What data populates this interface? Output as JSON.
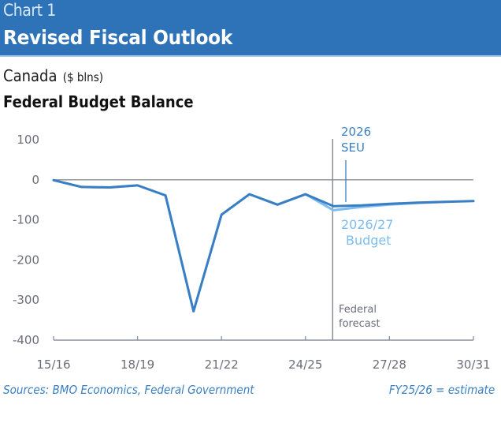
{
  "header": {
    "chart_number": "Chart 1",
    "title": "Revised Fiscal Outlook"
  },
  "subtitle": {
    "region": "Canada",
    "unit": "($ blns)"
  },
  "series_title": "Federal Budget Balance",
  "footer": {
    "sources": "Sources: BMO Economics, Federal Government",
    "note": "FY25/26 = estimate"
  },
  "colors": {
    "header_bg": "#2E73B8",
    "seu_line": "#3A7FC3",
    "budget_line": "#7CBCF0",
    "axis": "#6B6E7A"
  },
  "chart_data": {
    "type": "line",
    "title": "Federal Budget Balance",
    "xlabel": "",
    "ylabel": "$ blns",
    "x": [
      "15/16",
      "16/17",
      "17/18",
      "18/19",
      "19/20",
      "20/21",
      "21/22",
      "22/23",
      "23/24",
      "24/25",
      "25/26",
      "26/27",
      "27/28",
      "28/29",
      "29/30",
      "30/31"
    ],
    "x_tick_labels": [
      "15/16",
      "18/19",
      "21/22",
      "24/25",
      "27/28",
      "30/31"
    ],
    "y_tick_labels": [
      "100",
      "0",
      "-100",
      "-200",
      "-300",
      "-400"
    ],
    "ylim": [
      -400,
      100
    ],
    "series": [
      {
        "name": "2026 SEU",
        "values": [
          -1,
          -18,
          -19,
          -14,
          -39,
          -328,
          -87,
          -36,
          -62,
          -36,
          -66,
          -64,
          -60,
          -57,
          -55,
          -53
        ]
      },
      {
        "name": "2026/27 Budget",
        "values": [
          -1,
          -18,
          -19,
          -14,
          -39,
          -328,
          -87,
          -36,
          -62,
          -36,
          -76,
          -68,
          -62,
          -58,
          -55,
          null
        ]
      }
    ],
    "zero_line": true,
    "forecast_divider_at": "25/26",
    "annotations": [
      {
        "text_lines": [
          "2026",
          "SEU"
        ],
        "series": "2026 SEU"
      },
      {
        "text_lines": [
          "2026/27",
          "Budget"
        ],
        "series": "2026/27 Budget"
      },
      {
        "text_lines": [
          "Federal",
          "forecast"
        ],
        "target": "forecast-divider"
      }
    ],
    "grid": false,
    "legend": "none"
  }
}
